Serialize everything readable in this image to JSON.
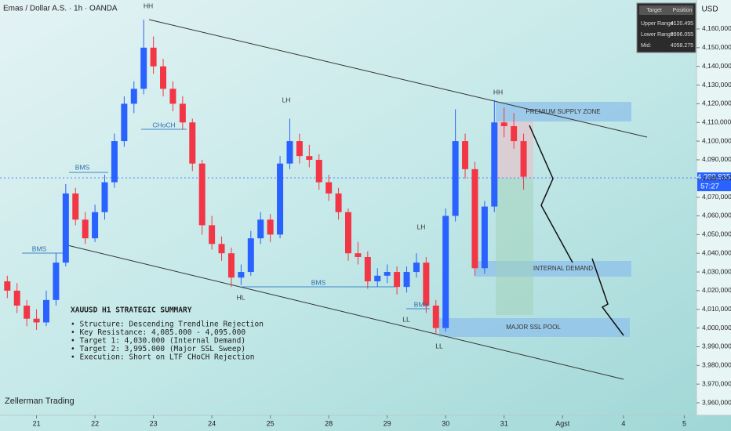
{
  "chart_data": {
    "type": "candlestick",
    "title": "Emas / Dollar A.S. · 1h · OANDA",
    "currency": "USD",
    "watermark": "Zellerman Trading",
    "up_color": "#2962ff",
    "down_color": "#f23645",
    "ylim": [
      3953300,
      4175500
    ],
    "yticks": [
      {
        "value": 3960000,
        "label": "3,960,000"
      },
      {
        "value": 3970000,
        "label": "3,970,000"
      },
      {
        "value": 3980000,
        "label": "3,980,000"
      },
      {
        "value": 3990000,
        "label": "3,990,000"
      },
      {
        "value": 4000000,
        "label": "4,000,000"
      },
      {
        "value": 4010000,
        "label": "4,010,000"
      },
      {
        "value": 4020000,
        "label": "4,020,000"
      },
      {
        "value": 4030000,
        "label": "4,030,000"
      },
      {
        "value": 4040000,
        "label": "4,040,000"
      },
      {
        "value": 4050000,
        "label": "4,050,000"
      },
      {
        "value": 4060000,
        "label": "4,060,000"
      },
      {
        "value": 4070000,
        "label": "4,070,000"
      },
      {
        "value": 4080000,
        "label": "4,080,000"
      },
      {
        "value": 4090000,
        "label": "4,090,000"
      },
      {
        "value": 4100000,
        "label": "4,100,000"
      },
      {
        "value": 4110000,
        "label": "4,110,000"
      },
      {
        "value": 4120000,
        "label": "4,120,000"
      },
      {
        "value": 4130000,
        "label": "4,130,000"
      },
      {
        "value": 4140000,
        "label": "4,140,000"
      },
      {
        "value": 4150000,
        "label": "4,150,000"
      },
      {
        "value": 4160000,
        "label": "4,160,000"
      }
    ],
    "xlim": [
      -15,
      271
    ],
    "xticks": [
      {
        "value": 0,
        "label": "21"
      },
      {
        "value": 24,
        "label": "22"
      },
      {
        "value": 48,
        "label": "23"
      },
      {
        "value": 72,
        "label": "24"
      },
      {
        "value": 96,
        "label": "25"
      },
      {
        "value": 120,
        "label": "28"
      },
      {
        "value": 144,
        "label": "29"
      },
      {
        "value": 168,
        "label": "30"
      },
      {
        "value": 192,
        "label": "31"
      },
      {
        "value": 216,
        "label": "Agst"
      },
      {
        "value": 241,
        "label": "4"
      },
      {
        "value": 266,
        "label": "5"
      }
    ],
    "x": [
      -12,
      -8,
      -4,
      0,
      4,
      8,
      12,
      16,
      20,
      24,
      28,
      32,
      36,
      40,
      44,
      48,
      52,
      56,
      60,
      64,
      68,
      72,
      76,
      80,
      84,
      88,
      92,
      96,
      100,
      104,
      108,
      112,
      116,
      120,
      124,
      128,
      132,
      136,
      140,
      144,
      148,
      152,
      156,
      160,
      164,
      168,
      172,
      176,
      180,
      184,
      188,
      192,
      196,
      200
    ],
    "open": [
      4025000,
      4020000,
      4012000,
      4005000,
      4003000,
      4015000,
      4035000,
      4072000,
      4058000,
      4048000,
      4062000,
      4078000,
      4100000,
      4120000,
      4128000,
      4150000,
      4140000,
      4128000,
      4120000,
      4110000,
      4088000,
      4055000,
      4045000,
      4040000,
      4027000,
      4030000,
      4048000,
      4058000,
      4050000,
      4088000,
      4100000,
      4092000,
      4090000,
      4078000,
      4072000,
      4062000,
      4040000,
      4038000,
      4025000,
      4028000,
      4030000,
      4022000,
      4030000,
      4035000,
      4012000,
      4000000,
      4060000,
      4100000,
      4085000,
      4032000,
      4065000,
      4110000,
      4108000,
      4100000
    ],
    "high": [
      4028000,
      4024000,
      4015000,
      4010000,
      4020000,
      4040000,
      4077000,
      4075000,
      4062000,
      4066000,
      4082000,
      4104000,
      4124000,
      4132000,
      4165000,
      4156000,
      4144000,
      4132000,
      4124000,
      4112000,
      4090000,
      4060000,
      4049000,
      4043000,
      4034000,
      4052000,
      4062000,
      4061000,
      4092000,
      4112000,
      4104000,
      4098000,
      4093000,
      4082000,
      4075000,
      4064000,
      4046000,
      4041000,
      4032000,
      4034000,
      4033000,
      4033000,
      4040000,
      4038000,
      4015000,
      4064000,
      4117000,
      4104000,
      4089000,
      4068000,
      4122000,
      4118000,
      4115000,
      4104000
    ],
    "low": [
      4016000,
      4008000,
      4001000,
      3999000,
      4001000,
      4012000,
      4033000,
      4055000,
      4045000,
      4046000,
      4058000,
      4075000,
      4097000,
      4115000,
      4125000,
      4136000,
      4124000,
      4116000,
      4106000,
      4084000,
      4050000,
      4042000,
      4036000,
      4022000,
      4023000,
      4028000,
      4045000,
      4046000,
      4048000,
      4085000,
      4088000,
      4086000,
      4074000,
      4068000,
      4058000,
      4036000,
      4034000,
      4021000,
      4022000,
      4024000,
      4018000,
      4019000,
      4027000,
      4008000,
      3997000,
      3998000,
      4057000,
      4080000,
      4028000,
      4029000,
      4062000,
      4102000,
      4096000,
      4074000
    ],
    "close": [
      4020000,
      4012000,
      4005000,
      4003000,
      4015000,
      4035000,
      4072000,
      4058000,
      4048000,
      4062000,
      4078000,
      4100000,
      4120000,
      4128000,
      4150000,
      4140000,
      4128000,
      4120000,
      4110000,
      4088000,
      4055000,
      4045000,
      4040000,
      4027000,
      4030000,
      4048000,
      4058000,
      4050000,
      4088000,
      4100000,
      4092000,
      4090000,
      4078000,
      4072000,
      4062000,
      4040000,
      4038000,
      4025000,
      4028000,
      4030000,
      4022000,
      4030000,
      4035000,
      4012000,
      4000000,
      4060000,
      4100000,
      4085000,
      4032000,
      4065000,
      4110000,
      4108000,
      4100000,
      4080935
    ],
    "price_label": "4,080,935",
    "countdown": "57:27",
    "annotations": [
      "HH",
      "LH",
      "HH",
      "LH",
      "HL",
      "LL",
      "LL",
      "BMS",
      "BMS",
      "BMS",
      "BMS",
      "CHoCH",
      "PREMIUM SUPPLY ZONE",
      "INTERNAL DEMAND",
      "MAJOR SSL POOL"
    ],
    "stats": {
      "header": [
        "Target",
        "Position"
      ],
      "rows": [
        [
          "Upper Range:",
          4120.495
        ],
        [
          "Lower Range:",
          3996.055
        ],
        [
          "Mid:",
          4058.275
        ]
      ]
    },
    "summary": {
      "title": "XAUUSD H1 STRATEGIC SUMMARY",
      "items": [
        "• Structure: Descending Trendline Rejection",
        "• Key Resistance: 4,085.000 - 4,095.000",
        "• Target 1: 4,030.000 (Internal Demand)",
        "• Target 2: 3,995.000 (Major SSL Sweep)",
        "• Execution: Short on LTF CHoCH Rejection"
      ]
    }
  }
}
